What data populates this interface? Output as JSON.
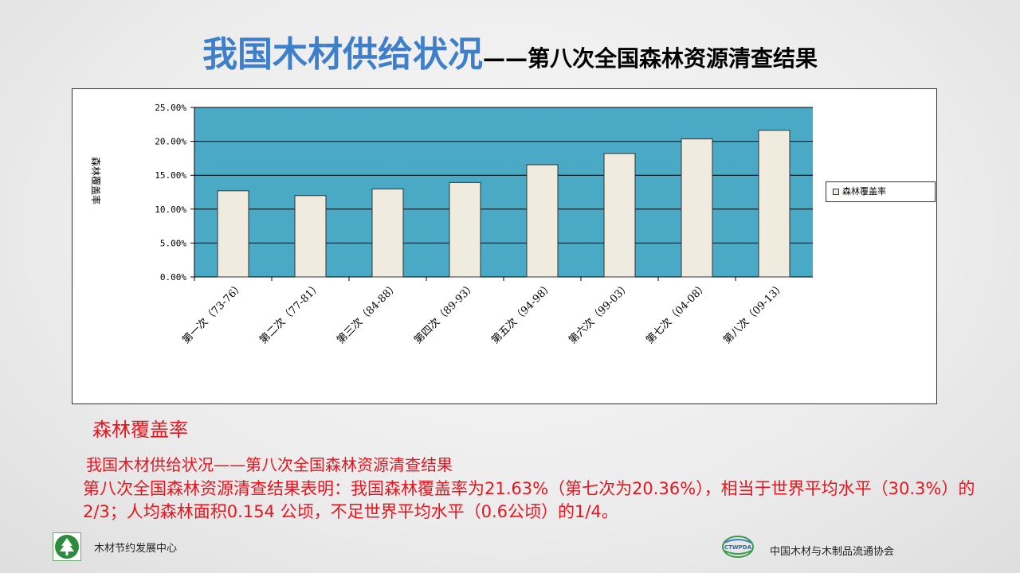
{
  "slide": {
    "title_main": "我国木材供给状况",
    "title_sub": "——第八次全国森林资源清查结果",
    "caption": "森林覆盖率",
    "subhead": "我国木材供给状况——第八次全国森林资源清查结果",
    "body": "第八次全国森林资源清查结果表明：我国森林覆盖率为21.63%（第七次为20.36%），相当于世界平均水平（30.3%）的2/3；人均森林面积0.154 公顷，不足世界平均水平（0.6公顷）的1/4。",
    "footer_left": "木材节约发展中心",
    "footer_right": "中国木材与木制品流通协会",
    "logo_right_text": "CTWPDA"
  },
  "chart_data": {
    "type": "bar",
    "title": "",
    "ylabel": "森林覆盖率",
    "xlabel": "",
    "categories": [
      "第一次（73-76）",
      "第二次（77-81）",
      "第三次（84-88）",
      "第四次（89-93）",
      "第五次（94-98）",
      "第六次（99-03）",
      "第七次（04-08）",
      "第八次（09-13）"
    ],
    "series": [
      {
        "name": "森林覆盖率",
        "values": [
          12.7,
          12.0,
          12.98,
          13.92,
          16.55,
          18.21,
          20.36,
          21.63
        ]
      }
    ],
    "ylim": [
      0,
      25
    ],
    "yticks": [
      "0.00%",
      "5.00%",
      "10.00%",
      "15.00%",
      "20.00%",
      "25.00%"
    ],
    "grid": true,
    "legend": "right",
    "colors": {
      "plot_bg": "#4aa9c4",
      "bar_fill": "#efebdf",
      "bar_stroke": "#333333"
    }
  }
}
